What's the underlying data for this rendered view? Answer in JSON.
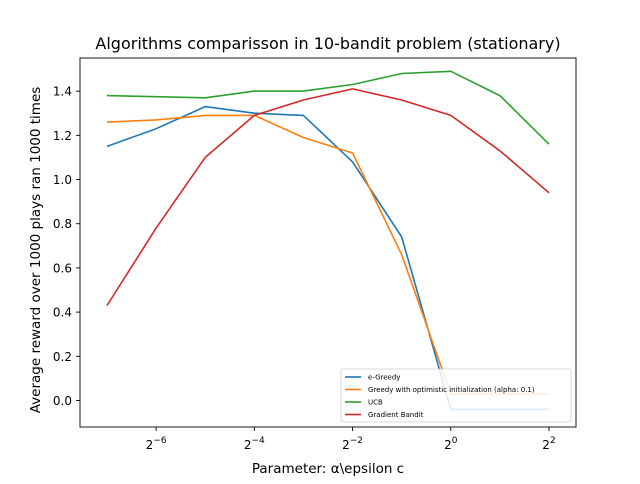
{
  "chart_data": {
    "type": "line",
    "title": "Algorithms comparisson in 10-bandit problem (stationary)",
    "xlabel": "Parameter: α\\epsilon c",
    "ylabel": "Average reward over 1000 plays ran 1000 times",
    "x_scale": "log2",
    "x": [
      -7,
      -6,
      -5,
      -4,
      -3,
      -2,
      -1,
      0,
      1,
      2
    ],
    "xlim": [
      -7.55,
      2.55
    ],
    "ylim": [
      -0.12,
      1.55
    ],
    "x_ticks": [
      {
        "value": -6,
        "base": "2",
        "exp": "−6"
      },
      {
        "value": -4,
        "base": "2",
        "exp": "−4"
      },
      {
        "value": -2,
        "base": "2",
        "exp": "−2"
      },
      {
        "value": 0,
        "base": "2",
        "exp": "0"
      },
      {
        "value": 2,
        "base": "2",
        "exp": "2"
      }
    ],
    "y_ticks": [
      "0.0",
      "0.2",
      "0.4",
      "0.6",
      "0.8",
      "1.0",
      "1.2",
      "1.4"
    ],
    "grid": false,
    "legend_position": "lower-right",
    "series": [
      {
        "name": "e-Greedy",
        "color": "#1f77b4",
        "x": [
          -7,
          -6,
          -5,
          -4,
          -3,
          -2,
          -1,
          0,
          1,
          2
        ],
        "values": [
          1.15,
          1.23,
          1.33,
          1.3,
          1.29,
          1.08,
          0.74,
          -0.04,
          -0.04,
          -0.04
        ]
      },
      {
        "name": "Greedy with optimistic initialization (alpha: 0.1)",
        "color": "#ff7f0e",
        "x": [
          -7,
          -6,
          -5,
          -4,
          -3,
          -2,
          -1,
          0,
          1,
          2
        ],
        "values": [
          1.26,
          1.27,
          1.29,
          1.29,
          1.19,
          1.12,
          0.66,
          0.03,
          0.03,
          0.03
        ]
      },
      {
        "name": "UCB",
        "color": "#2ca02c",
        "x": [
          -7,
          -6,
          -5,
          -4,
          -3,
          -2,
          -1,
          0,
          1,
          2
        ],
        "values": [
          1.38,
          1.375,
          1.37,
          1.4,
          1.4,
          1.43,
          1.48,
          1.49,
          1.38,
          1.16
        ]
      },
      {
        "name": "Gradient Bandit",
        "color": "#d62728",
        "x": [
          -7,
          -6,
          -5,
          -4,
          -3,
          -2,
          -1,
          0,
          1,
          2
        ],
        "values": [
          0.43,
          0.78,
          1.1,
          1.29,
          1.36,
          1.41,
          1.36,
          1.29,
          1.13,
          0.94
        ]
      }
    ]
  }
}
